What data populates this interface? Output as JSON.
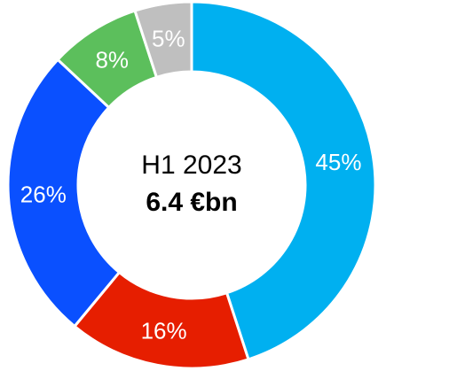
{
  "chart_data": {
    "type": "pie",
    "donut": true,
    "center_label": {
      "period": "H1 2023",
      "total": "6.4 €bn"
    },
    "slices": [
      {
        "label": "45%",
        "value": 45,
        "color": "#00B0F0"
      },
      {
        "label": "16%",
        "value": 16,
        "color": "#E61E00"
      },
      {
        "label": "26%",
        "value": 26,
        "color": "#0A50FF"
      },
      {
        "label": "8%",
        "value": 8,
        "color": "#5CBF5C"
      },
      {
        "label": "5%",
        "value": 5,
        "color": "#BFBFBF"
      }
    ],
    "legend": "none"
  }
}
